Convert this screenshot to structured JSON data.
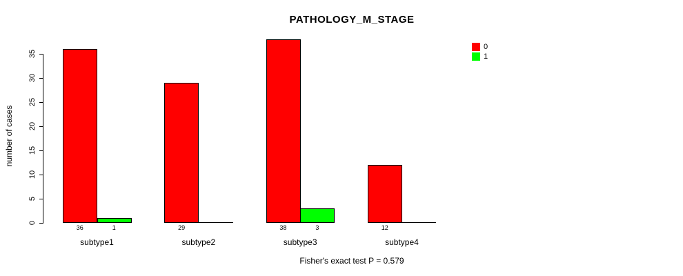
{
  "title": "PATHOLOGY_M_STAGE",
  "footer": "Fisher's exact test P = 0.579",
  "y_axis": {
    "label": "number of cases",
    "ticks": [
      0,
      5,
      10,
      15,
      20,
      25,
      30,
      35
    ]
  },
  "legend": {
    "entries": [
      {
        "label": "0",
        "color": "#ff0000"
      },
      {
        "label": "1",
        "color": "#00ff00"
      }
    ]
  },
  "chart_data": {
    "type": "bar",
    "title": "PATHOLOGY_M_STAGE",
    "xlabel": "",
    "ylabel": "number of cases",
    "ylim": [
      0,
      38
    ],
    "grid": false,
    "legend_position": "top-right",
    "annotation": "Fisher's exact test P = 0.579",
    "categories": [
      "subtype1",
      "subtype2",
      "subtype3",
      "subtype4"
    ],
    "series": [
      {
        "name": "0",
        "color": "#ff0000",
        "values": [
          36,
          29,
          38,
          12
        ]
      },
      {
        "name": "1",
        "color": "#00ff00",
        "values": [
          1,
          0,
          3,
          0
        ]
      }
    ],
    "bar_value_labels_shown_for_nonzero_only": true
  }
}
